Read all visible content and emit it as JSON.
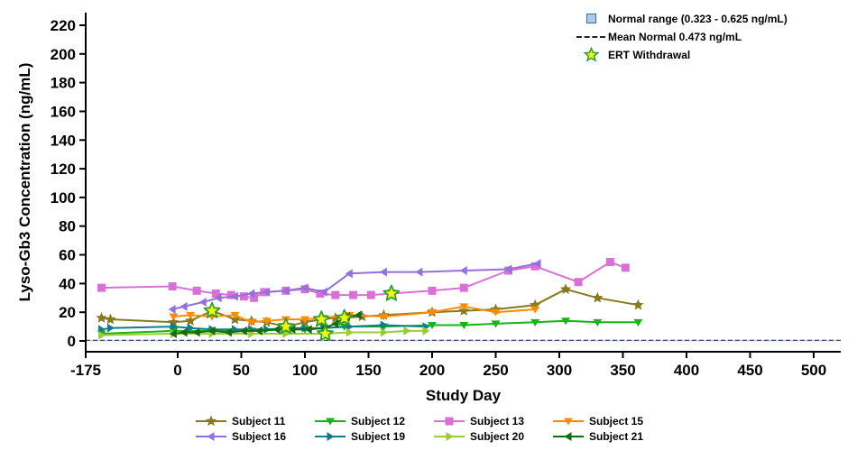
{
  "chart_data": {
    "type": "line",
    "title": "",
    "xlabel": "Study Day",
    "ylabel": "Lyso-Gb3 Concentration (ng/mL)",
    "xlim": [
      -175,
      560
    ],
    "ylim": [
      0,
      220
    ],
    "grid": false,
    "x_ticks": [
      -175,
      0,
      50,
      100,
      150,
      200,
      250,
      300,
      350,
      400,
      450,
      500
    ],
    "y_ticks": [
      0,
      20,
      40,
      60,
      80,
      100,
      120,
      140,
      160,
      180,
      200,
      220
    ],
    "normal_range": {
      "label": "Normal range (0.323 - 0.625 ng/mL)",
      "low": 0.323,
      "high": 0.625,
      "color": "#aecbe3",
      "border": "#3f6e9e"
    },
    "mean_normal": {
      "label": "Mean Normal 0.473 ng/mL",
      "value": 0.473,
      "color": "#222233"
    },
    "ert_withdrawal": {
      "label": "ERT Withdrawal",
      "fill": "#f7f700",
      "stroke": "#2f9e33",
      "points": [
        [
          27,
          21
        ],
        [
          85,
          10
        ],
        [
          113,
          15
        ],
        [
          116,
          5
        ],
        [
          131,
          16
        ],
        [
          168,
          33
        ]
      ]
    },
    "series": [
      {
        "name": "Subject 11",
        "color": "#867a1f",
        "marker": "star",
        "points": [
          [
            -145,
            16
          ],
          [
            -128,
            15
          ],
          [
            -8,
            13
          ],
          [
            10,
            14
          ],
          [
            27,
            21
          ],
          [
            45,
            15
          ],
          [
            58,
            14
          ],
          [
            70,
            13
          ],
          [
            85,
            10
          ],
          [
            100,
            13
          ],
          [
            113,
            15
          ],
          [
            124,
            16
          ],
          [
            131,
            16
          ],
          [
            145,
            17
          ],
          [
            162,
            18
          ],
          [
            200,
            20
          ],
          [
            225,
            21
          ],
          [
            250,
            22
          ],
          [
            281,
            25
          ],
          [
            305,
            36
          ],
          [
            330,
            30
          ],
          [
            362,
            25
          ]
        ]
      },
      {
        "name": "Subject 12",
        "color": "#17b417",
        "marker": "triangle-down",
        "points": [
          [
            -145,
            5
          ],
          [
            -8,
            7
          ],
          [
            27,
            7
          ],
          [
            58,
            7
          ],
          [
            85,
            8
          ],
          [
            100,
            8
          ],
          [
            115,
            9
          ],
          [
            131,
            10
          ],
          [
            162,
            10
          ],
          [
            200,
            11
          ],
          [
            225,
            11
          ],
          [
            250,
            12
          ],
          [
            281,
            13
          ],
          [
            305,
            14
          ],
          [
            330,
            13
          ],
          [
            362,
            13
          ]
        ]
      },
      {
        "name": "Subject 13",
        "color": "#da70d6",
        "marker": "square",
        "points": [
          [
            -145,
            37
          ],
          [
            -10,
            38
          ],
          [
            15,
            35
          ],
          [
            30,
            33
          ],
          [
            42,
            32
          ],
          [
            52,
            31
          ],
          [
            60,
            30
          ],
          [
            68,
            34
          ],
          [
            85,
            35
          ],
          [
            100,
            36
          ],
          [
            112,
            33
          ],
          [
            124,
            32
          ],
          [
            138,
            32
          ],
          [
            152,
            32
          ],
          [
            168,
            33
          ],
          [
            200,
            35
          ],
          [
            225,
            37
          ],
          [
            260,
            49
          ],
          [
            281,
            52
          ],
          [
            315,
            41
          ],
          [
            340,
            55
          ],
          [
            352,
            51
          ]
        ]
      },
      {
        "name": "Subject 15",
        "color": "#ff8c00",
        "marker": "triangle-down",
        "points": [
          [
            -8,
            17
          ],
          [
            10,
            18
          ],
          [
            27,
            17
          ],
          [
            45,
            18
          ],
          [
            58,
            13
          ],
          [
            70,
            14
          ],
          [
            85,
            15
          ],
          [
            100,
            15
          ],
          [
            115,
            16
          ],
          [
            135,
            18
          ],
          [
            162,
            17
          ],
          [
            200,
            20
          ],
          [
            225,
            24
          ],
          [
            250,
            20
          ],
          [
            281,
            22
          ]
        ]
      },
      {
        "name": "Subject 16",
        "color": "#9370db",
        "marker": "triangle-left",
        "points": [
          [
            -10,
            22
          ],
          [
            5,
            24
          ],
          [
            20,
            27
          ],
          [
            32,
            30
          ],
          [
            45,
            31
          ],
          [
            58,
            33
          ],
          [
            70,
            34
          ],
          [
            85,
            35
          ],
          [
            100,
            37
          ],
          [
            115,
            34
          ],
          [
            135,
            47
          ],
          [
            162,
            48
          ],
          [
            190,
            48
          ],
          [
            225,
            49
          ],
          [
            260,
            50
          ],
          [
            283,
            54
          ]
        ]
      },
      {
        "name": "Subject 19",
        "color": "#117d8a",
        "marker": "triangle-right",
        "points": [
          [
            -145,
            8
          ],
          [
            -128,
            9
          ],
          [
            -8,
            10
          ],
          [
            10,
            9
          ],
          [
            27,
            8
          ],
          [
            45,
            8
          ],
          [
            58,
            8
          ],
          [
            70,
            8
          ],
          [
            85,
            9
          ],
          [
            100,
            9
          ],
          [
            115,
            9
          ],
          [
            135,
            10
          ],
          [
            162,
            11
          ],
          [
            195,
            10
          ]
        ]
      },
      {
        "name": "Subject 20",
        "color": "#9acd32",
        "marker": "triangle-right",
        "points": [
          [
            -145,
            4
          ],
          [
            -8,
            5
          ],
          [
            27,
            5
          ],
          [
            58,
            5
          ],
          [
            85,
            5
          ],
          [
            116,
            5
          ],
          [
            135,
            6
          ],
          [
            162,
            6
          ],
          [
            180,
            7
          ],
          [
            195,
            7
          ]
        ]
      },
      {
        "name": "Subject 21",
        "color": "#156b15",
        "marker": "triangle-left",
        "points": [
          [
            -8,
            5
          ],
          [
            5,
            6
          ],
          [
            15,
            6
          ],
          [
            27,
            7
          ],
          [
            40,
            6
          ],
          [
            52,
            7
          ],
          [
            64,
            7
          ],
          [
            78,
            8
          ],
          [
            90,
            8
          ],
          [
            103,
            8
          ],
          [
            115,
            9
          ],
          [
            124,
            12
          ],
          [
            133,
            17
          ],
          [
            142,
            18
          ]
        ]
      }
    ],
    "legend_rows": [
      [
        "Subject 11",
        "Subject 12",
        "Subject 13",
        "Subject 15"
      ],
      [
        "Subject 16",
        "Subject 19",
        "Subject 20",
        "Subject 21"
      ]
    ]
  }
}
